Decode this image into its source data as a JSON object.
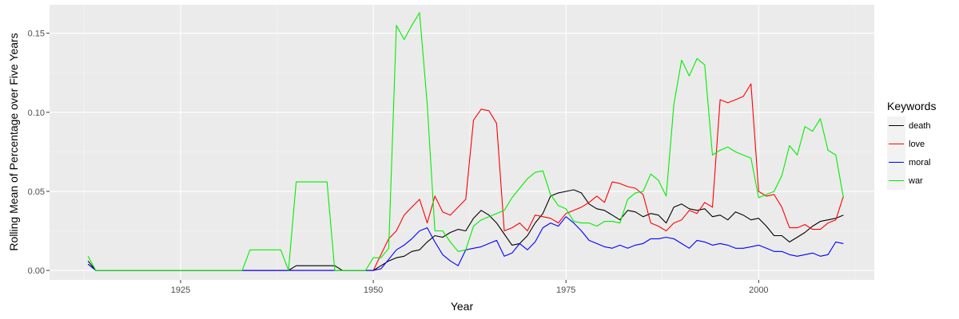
{
  "chart_data": {
    "type": "line",
    "xlabel": "Year",
    "ylabel": "Rolling Mean of Percentage over Five Years",
    "xlim": [
      1908,
      2015
    ],
    "ylim": [
      -0.006,
      0.168
    ],
    "x_ticks": [
      1925,
      1950,
      1975,
      2000
    ],
    "x_tick_labels": [
      "1925",
      "1950",
      "1975",
      "2000"
    ],
    "y_ticks": [
      0,
      0.05,
      0.1,
      0.15
    ],
    "y_tick_labels": [
      "0.00",
      "0.05",
      "0.10",
      "0.15"
    ],
    "grid": true,
    "legend": {
      "title": "Keywords",
      "position": "right"
    },
    "series": [
      {
        "name": "death",
        "color": "#000000",
        "points": [
          [
            1913,
            0.006
          ],
          [
            1914,
            0
          ],
          [
            1939,
            0
          ],
          [
            1940,
            0.003
          ],
          [
            1945,
            0.003
          ],
          [
            1946,
            0
          ],
          [
            1950,
            0
          ],
          [
            1951,
            0.003
          ],
          [
            1952,
            0.006
          ],
          [
            1953,
            0.008
          ],
          [
            1954,
            0.009
          ],
          [
            1955,
            0.012
          ],
          [
            1956,
            0.013
          ],
          [
            1957,
            0.018
          ],
          [
            1958,
            0.022
          ],
          [
            1959,
            0.021
          ],
          [
            1960,
            0.024
          ],
          [
            1961,
            0.026
          ],
          [
            1962,
            0.025
          ],
          [
            1963,
            0.033
          ],
          [
            1964,
            0.038
          ],
          [
            1965,
            0.035
          ],
          [
            1966,
            0.03
          ],
          [
            1967,
            0.023
          ],
          [
            1968,
            0.016
          ],
          [
            1969,
            0.017
          ],
          [
            1970,
            0.022
          ],
          [
            1971,
            0.03
          ],
          [
            1972,
            0.036
          ],
          [
            1973,
            0.047
          ],
          [
            1974,
            0.049
          ],
          [
            1975,
            0.05
          ],
          [
            1976,
            0.051
          ],
          [
            1977,
            0.049
          ],
          [
            1978,
            0.042
          ],
          [
            1979,
            0.039
          ],
          [
            1980,
            0.038
          ],
          [
            1981,
            0.035
          ],
          [
            1982,
            0.032
          ],
          [
            1983,
            0.038
          ],
          [
            1984,
            0.037
          ],
          [
            1985,
            0.034
          ],
          [
            1986,
            0.036
          ],
          [
            1987,
            0.035
          ],
          [
            1988,
            0.03
          ],
          [
            1989,
            0.04
          ],
          [
            1990,
            0.042
          ],
          [
            1991,
            0.039
          ],
          [
            1992,
            0.038
          ],
          [
            1993,
            0.039
          ],
          [
            1994,
            0.034
          ],
          [
            1995,
            0.035
          ],
          [
            1996,
            0.032
          ],
          [
            1997,
            0.037
          ],
          [
            1998,
            0.035
          ],
          [
            1999,
            0.032
          ],
          [
            2000,
            0.033
          ],
          [
            2001,
            0.028
          ],
          [
            2002,
            0.022
          ],
          [
            2003,
            0.022
          ],
          [
            2004,
            0.018
          ],
          [
            2005,
            0.021
          ],
          [
            2006,
            0.024
          ],
          [
            2007,
            0.028
          ],
          [
            2008,
            0.031
          ],
          [
            2009,
            0.032
          ],
          [
            2010,
            0.033
          ],
          [
            2011,
            0.035
          ]
        ]
      },
      {
        "name": "love",
        "color": "#ff0000",
        "points": [
          [
            1913,
            0.004
          ],
          [
            1914,
            0
          ],
          [
            1950,
            0
          ],
          [
            1951,
            0.01
          ],
          [
            1952,
            0.02
          ],
          [
            1953,
            0.025
          ],
          [
            1954,
            0.035
          ],
          [
            1955,
            0.04
          ],
          [
            1956,
            0.045
          ],
          [
            1957,
            0.03
          ],
          [
            1958,
            0.047
          ],
          [
            1959,
            0.037
          ],
          [
            1960,
            0.035
          ],
          [
            1961,
            0.04
          ],
          [
            1962,
            0.045
          ],
          [
            1963,
            0.095
          ],
          [
            1964,
            0.102
          ],
          [
            1965,
            0.101
          ],
          [
            1966,
            0.093
          ],
          [
            1967,
            0.025
          ],
          [
            1968,
            0.027
          ],
          [
            1969,
            0.03
          ],
          [
            1970,
            0.025
          ],
          [
            1971,
            0.035
          ],
          [
            1972,
            0.034
          ],
          [
            1973,
            0.033
          ],
          [
            1974,
            0.03
          ],
          [
            1975,
            0.036
          ],
          [
            1976,
            0.038
          ],
          [
            1977,
            0.04
          ],
          [
            1978,
            0.043
          ],
          [
            1979,
            0.047
          ],
          [
            1980,
            0.043
          ],
          [
            1981,
            0.056
          ],
          [
            1982,
            0.055
          ],
          [
            1983,
            0.053
          ],
          [
            1984,
            0.052
          ],
          [
            1985,
            0.048
          ],
          [
            1986,
            0.03
          ],
          [
            1987,
            0.028
          ],
          [
            1988,
            0.025
          ],
          [
            1989,
            0.03
          ],
          [
            1990,
            0.032
          ],
          [
            1991,
            0.038
          ],
          [
            1992,
            0.036
          ],
          [
            1993,
            0.043
          ],
          [
            1994,
            0.04
          ],
          [
            1995,
            0.108
          ],
          [
            1996,
            0.106
          ],
          [
            1997,
            0.108
          ],
          [
            1998,
            0.11
          ],
          [
            1999,
            0.118
          ],
          [
            2000,
            0.05
          ],
          [
            2001,
            0.047
          ],
          [
            2002,
            0.048
          ],
          [
            2003,
            0.04
          ],
          [
            2004,
            0.027
          ],
          [
            2005,
            0.027
          ],
          [
            2006,
            0.029
          ],
          [
            2007,
            0.026
          ],
          [
            2008,
            0.026
          ],
          [
            2009,
            0.03
          ],
          [
            2010,
            0.032
          ],
          [
            2011,
            0.047
          ]
        ]
      },
      {
        "name": "moral",
        "color": "#0000ff",
        "points": [
          [
            1913,
            0.004
          ],
          [
            1914,
            0
          ],
          [
            1950,
            0
          ],
          [
            1951,
            0.001
          ],
          [
            1952,
            0.007
          ],
          [
            1953,
            0.013
          ],
          [
            1954,
            0.016
          ],
          [
            1955,
            0.02
          ],
          [
            1956,
            0.025
          ],
          [
            1957,
            0.027
          ],
          [
            1958,
            0.018
          ],
          [
            1959,
            0.01
          ],
          [
            1960,
            0.006
          ],
          [
            1961,
            0.003
          ],
          [
            1962,
            0.013
          ],
          [
            1963,
            0.014
          ],
          [
            1964,
            0.015
          ],
          [
            1965,
            0.017
          ],
          [
            1966,
            0.019
          ],
          [
            1967,
            0.009
          ],
          [
            1968,
            0.011
          ],
          [
            1969,
            0.017
          ],
          [
            1970,
            0.013
          ],
          [
            1971,
            0.018
          ],
          [
            1972,
            0.027
          ],
          [
            1973,
            0.03
          ],
          [
            1974,
            0.028
          ],
          [
            1975,
            0.034
          ],
          [
            1976,
            0.03
          ],
          [
            1977,
            0.025
          ],
          [
            1978,
            0.019
          ],
          [
            1979,
            0.017
          ],
          [
            1980,
            0.015
          ],
          [
            1981,
            0.014
          ],
          [
            1982,
            0.016
          ],
          [
            1983,
            0.014
          ],
          [
            1984,
            0.016
          ],
          [
            1985,
            0.017
          ],
          [
            1986,
            0.02
          ],
          [
            1987,
            0.02
          ],
          [
            1988,
            0.021
          ],
          [
            1989,
            0.02
          ],
          [
            1990,
            0.017
          ],
          [
            1991,
            0.014
          ],
          [
            1992,
            0.019
          ],
          [
            1993,
            0.018
          ],
          [
            1994,
            0.016
          ],
          [
            1995,
            0.017
          ],
          [
            1996,
            0.016
          ],
          [
            1997,
            0.014
          ],
          [
            1998,
            0.014
          ],
          [
            1999,
            0.015
          ],
          [
            2000,
            0.016
          ],
          [
            2001,
            0.014
          ],
          [
            2002,
            0.012
          ],
          [
            2003,
            0.012
          ],
          [
            2004,
            0.01
          ],
          [
            2005,
            0.009
          ],
          [
            2006,
            0.01
          ],
          [
            2007,
            0.011
          ],
          [
            2008,
            0.009
          ],
          [
            2009,
            0.01
          ],
          [
            2010,
            0.018
          ],
          [
            2011,
            0.017
          ]
        ]
      },
      {
        "name": "war",
        "color": "#00ee00",
        "points": [
          [
            1913,
            0.009
          ],
          [
            1914,
            0
          ],
          [
            1933,
            0
          ],
          [
            1934,
            0.013
          ],
          [
            1938,
            0.013
          ],
          [
            1939,
            0
          ],
          [
            1940,
            0.056
          ],
          [
            1944,
            0.056
          ],
          [
            1945,
            0
          ],
          [
            1949,
            0
          ],
          [
            1950,
            0.008
          ],
          [
            1951,
            0.008
          ],
          [
            1952,
            0.014
          ],
          [
            1953,
            0.155
          ],
          [
            1954,
            0.146
          ],
          [
            1955,
            0.155
          ],
          [
            1956,
            0.163
          ],
          [
            1957,
            0.105
          ],
          [
            1958,
            0.025
          ],
          [
            1959,
            0.025
          ],
          [
            1960,
            0.018
          ],
          [
            1961,
            0.012
          ],
          [
            1962,
            0.013
          ],
          [
            1963,
            0.028
          ],
          [
            1964,
            0.032
          ],
          [
            1965,
            0.034
          ],
          [
            1966,
            0.036
          ],
          [
            1967,
            0.038
          ],
          [
            1968,
            0.046
          ],
          [
            1969,
            0.052
          ],
          [
            1970,
            0.058
          ],
          [
            1971,
            0.062
          ],
          [
            1972,
            0.063
          ],
          [
            1973,
            0.048
          ],
          [
            1974,
            0.041
          ],
          [
            1975,
            0.039
          ],
          [
            1976,
            0.031
          ],
          [
            1977,
            0.03
          ],
          [
            1978,
            0.03
          ],
          [
            1979,
            0.028
          ],
          [
            1980,
            0.031
          ],
          [
            1981,
            0.031
          ],
          [
            1982,
            0.03
          ],
          [
            1983,
            0.045
          ],
          [
            1984,
            0.049
          ],
          [
            1985,
            0.05
          ],
          [
            1986,
            0.061
          ],
          [
            1987,
            0.057
          ],
          [
            1988,
            0.047
          ],
          [
            1989,
            0.105
          ],
          [
            1990,
            0.133
          ],
          [
            1991,
            0.123
          ],
          [
            1992,
            0.134
          ],
          [
            1993,
            0.13
          ],
          [
            1994,
            0.073
          ],
          [
            1995,
            0.076
          ],
          [
            1996,
            0.078
          ],
          [
            1997,
            0.075
          ],
          [
            1998,
            0.073
          ],
          [
            1999,
            0.071
          ],
          [
            2000,
            0.046
          ],
          [
            2001,
            0.048
          ],
          [
            2002,
            0.05
          ],
          [
            2003,
            0.06
          ],
          [
            2004,
            0.079
          ],
          [
            2005,
            0.073
          ],
          [
            2006,
            0.091
          ],
          [
            2007,
            0.088
          ],
          [
            2008,
            0.096
          ],
          [
            2009,
            0.076
          ],
          [
            2010,
            0.073
          ],
          [
            2011,
            0.046
          ]
        ]
      }
    ]
  }
}
